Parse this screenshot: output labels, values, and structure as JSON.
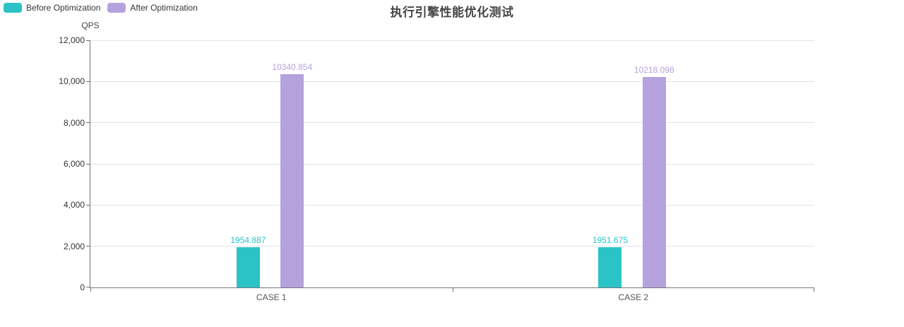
{
  "title": "执行引擎性能优化测试",
  "legend": {
    "items": [
      {
        "label": "Before Optimization",
        "color": "#2bc3c5"
      },
      {
        "label": "After Optimization",
        "color": "#b5a2dc"
      }
    ]
  },
  "chart_data": {
    "type": "bar",
    "title": "执行引擎性能优化测试",
    "xlabel": "",
    "ylabel": "QPS",
    "categories": [
      "CASE 1",
      "CASE 2"
    ],
    "series": [
      {
        "name": "Before Optimization",
        "color": "#2bc3c5",
        "values": [
          1954.887,
          1951.675
        ],
        "data_labels": [
          "1954.887",
          "1951.675"
        ]
      },
      {
        "name": "After Optimization",
        "color": "#b5a2dc",
        "values": [
          10340.854,
          10218.098
        ],
        "data_labels": [
          "10340.854",
          "10218.098"
        ]
      }
    ],
    "ylim": [
      0,
      12000
    ],
    "yticks": [
      {
        "value": 0,
        "label": "0"
      },
      {
        "value": 2000,
        "label": "2,000"
      },
      {
        "value": 4000,
        "label": "4,000"
      },
      {
        "value": 6000,
        "label": "6,000"
      },
      {
        "value": 8000,
        "label": "8,000"
      },
      {
        "value": 10000,
        "label": "10,000"
      },
      {
        "value": 12000,
        "label": "12,000"
      }
    ],
    "grid": true,
    "legend_position": "top-left"
  }
}
